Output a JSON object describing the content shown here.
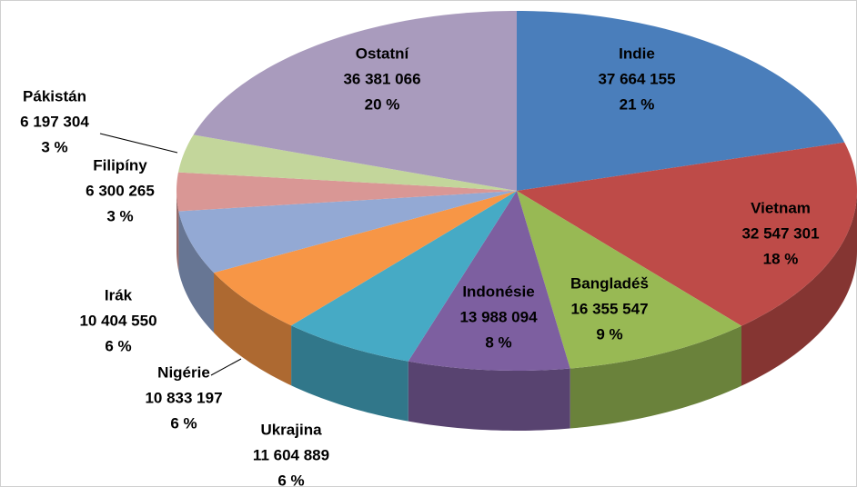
{
  "chart_data": {
    "type": "pie3d",
    "categories": [
      "Indie",
      "Vietnam",
      "Bangladéš",
      "Indonésie",
      "Ukrajina",
      "Nigérie",
      "Irák",
      "Filipíny",
      "Pákistán",
      "Ostatní"
    ],
    "values": [
      37664155,
      32547301,
      16355547,
      13988094,
      11604889,
      10833197,
      10404550,
      6300265,
      6197304,
      36381066
    ],
    "value_labels": [
      "37 664 155",
      "32 547 301",
      "16 355 547",
      "13 988 094",
      "11 604 889",
      "10 833 197",
      "10 404 550",
      "6 300 265",
      "6 197 304",
      "36 381 066"
    ],
    "percent_labels": [
      "21 %",
      "18 %",
      "9 %",
      "8 %",
      "6 %",
      "6 %",
      "6 %",
      "3 %",
      "3 %",
      "20 %"
    ],
    "colors": [
      "#4a7ebb",
      "#be4b48",
      "#98b954",
      "#7d5fa0",
      "#46aac5",
      "#f79646",
      "#93a9d4",
      "#d99795",
      "#c3d69b",
      "#a99bbd"
    ]
  }
}
